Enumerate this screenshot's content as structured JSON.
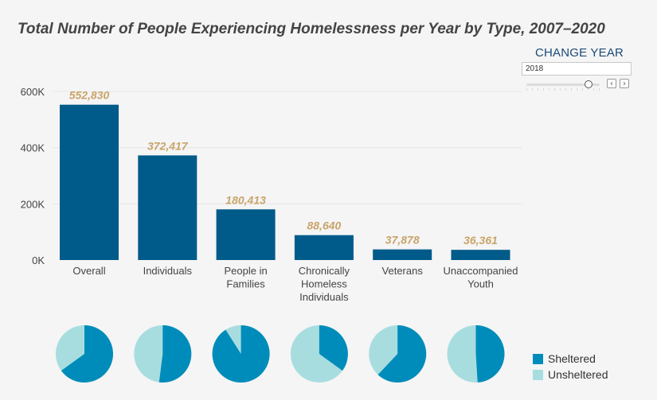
{
  "title": "Total Number of People Experiencing Homelessness per Year by Type, 2007–2020",
  "control": {
    "label": "CHANGE YEAR",
    "year": "2018",
    "prev_icon": "‹",
    "next_icon": "›"
  },
  "colors": {
    "bar": "#005b8a",
    "label": "#c9a46a",
    "sheltered": "#008cba",
    "unsheltered": "#a8dde0",
    "grid": "#e6e6e6",
    "axis_text": "#444444"
  },
  "chart_data": {
    "type": "bar",
    "title": "Total Number of People Experiencing Homelessness per Year by Type, 2007–2020",
    "xlabel": "",
    "ylabel": "",
    "ylim": [
      0,
      600000
    ],
    "ytick_labels": [
      "0K",
      "200K",
      "400K",
      "600K"
    ],
    "yticks": [
      0,
      200000,
      400000,
      600000
    ],
    "grid": true,
    "categories": [
      "Overall",
      "Individuals",
      "People in Families",
      "Chronically Homeless Individuals",
      "Veterans",
      "Unaccompanied Youth"
    ],
    "category_lines": [
      [
        "Overall"
      ],
      [
        "Individuals"
      ],
      [
        "People in",
        "Families"
      ],
      [
        "Chronically",
        "Homeless",
        "Individuals"
      ],
      [
        "Veterans"
      ],
      [
        "Unaccompanied",
        "Youth"
      ]
    ],
    "values": [
      552830,
      372417,
      180413,
      88640,
      37878,
      36361
    ],
    "value_labels": [
      "552,830",
      "372,417",
      "180,413",
      "88,640",
      "37,878",
      "36,361"
    ],
    "pies": [
      {
        "category": "Overall",
        "sheltered": 0.65,
        "unsheltered": 0.35
      },
      {
        "category": "Individuals",
        "sheltered": 0.52,
        "unsheltered": 0.48
      },
      {
        "category": "People in Families",
        "sheltered": 0.91,
        "unsheltered": 0.09
      },
      {
        "category": "Chronically Homeless Individuals",
        "sheltered": 0.35,
        "unsheltered": 0.65
      },
      {
        "category": "Veterans",
        "sheltered": 0.62,
        "unsheltered": 0.38
      },
      {
        "category": "Unaccompanied Youth",
        "sheltered": 0.49,
        "unsheltered": 0.51
      }
    ],
    "legend": [
      "Sheltered",
      "Unsheltered"
    ],
    "legend_position": "bottom-right"
  }
}
